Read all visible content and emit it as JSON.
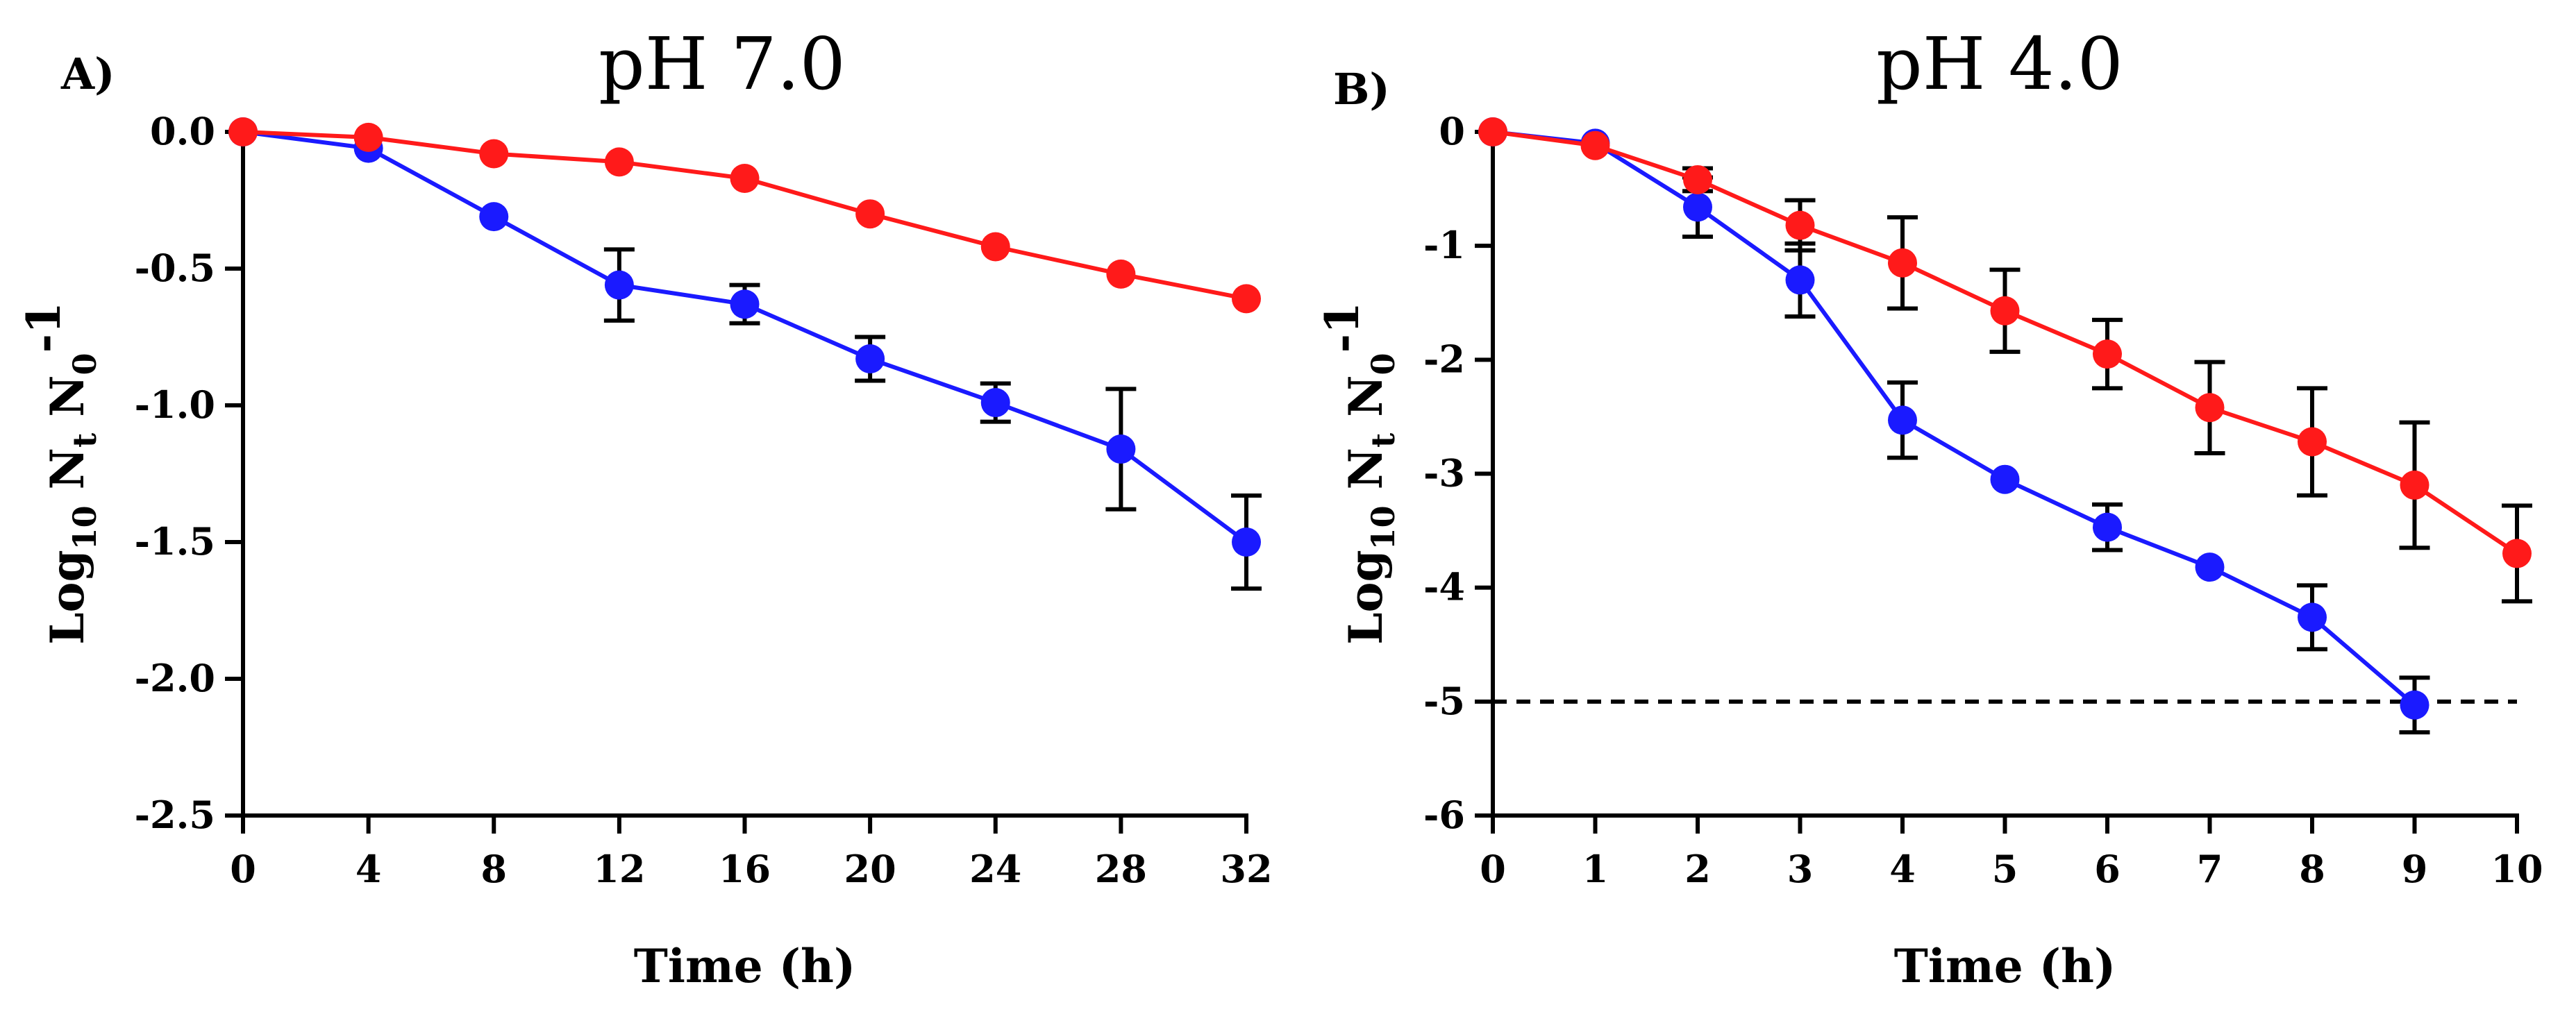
{
  "chart_data": [
    {
      "type": "line",
      "panel_label": "A)",
      "title": "pH 7.0",
      "xlabel": "Time (h)",
      "ylabel": {
        "main": "Log",
        "sub1": "10",
        "n1": " N",
        "sub2": "t",
        "n2": " N",
        "sub3": "0",
        "sup": "-1"
      },
      "x_ticks": [
        0,
        4,
        8,
        12,
        16,
        20,
        24,
        28,
        32
      ],
      "x_tick_labels": [
        "0",
        "4",
        "8",
        "12",
        "16",
        "20",
        "24",
        "28",
        "32"
      ],
      "y_ticks": [
        0.0,
        -0.5,
        -1.0,
        -1.5,
        -2.0,
        -2.5
      ],
      "y_tick_labels": [
        "0.0",
        "-0.5",
        "-1.0",
        "-1.5",
        "-2.0",
        "-2.5"
      ],
      "xlim": [
        0,
        32
      ],
      "ylim": [
        -2.5,
        0.0
      ],
      "grid": false,
      "series": [
        {
          "name": "red",
          "color": "#ff1a1a",
          "x": [
            0,
            4,
            8,
            12,
            16,
            20,
            24,
            28,
            32
          ],
          "y": [
            0.0,
            -0.02,
            -0.08,
            -0.11,
            -0.17,
            -0.3,
            -0.42,
            -0.52,
            -0.61
          ],
          "err": [
            0,
            0,
            0,
            0,
            0,
            0,
            0,
            0,
            0
          ]
        },
        {
          "name": "blue",
          "color": "#1a1aff",
          "x": [
            0,
            4,
            8,
            12,
            16,
            20,
            24,
            28,
            32
          ],
          "y": [
            0.0,
            -0.06,
            -0.31,
            -0.56,
            -0.63,
            -0.83,
            -0.99,
            -1.16,
            -1.5
          ],
          "err": [
            0,
            0,
            0,
            0.13,
            0.07,
            0.08,
            0.07,
            0.22,
            0.17
          ]
        }
      ]
    },
    {
      "type": "line",
      "panel_label": "B)",
      "title": "pH 4.0",
      "xlabel": "Time (h)",
      "ylabel": {
        "main": "Log",
        "sub1": "10",
        "n1": " N",
        "sub2": "t",
        "n2": " N",
        "sub3": "0",
        "sup": "-1"
      },
      "x_ticks": [
        0,
        1,
        2,
        3,
        4,
        5,
        6,
        7,
        8,
        9,
        10
      ],
      "x_tick_labels": [
        "0",
        "1",
        "2",
        "3",
        "4",
        "5",
        "6",
        "7",
        "8",
        "9",
        "10"
      ],
      "y_ticks": [
        0,
        -1,
        -2,
        -3,
        -4,
        -5,
        -6
      ],
      "y_tick_labels": [
        "0",
        "-1",
        "-2",
        "-3",
        "-4",
        "-5",
        "-6"
      ],
      "xlim": [
        0,
        10
      ],
      "ylim": [
        -6,
        0
      ],
      "grid": false,
      "reference_line_y": -5,
      "series": [
        {
          "name": "red",
          "color": "#ff1a1a",
          "x": [
            0,
            1,
            2,
            3,
            4,
            5,
            6,
            7,
            8,
            9,
            10
          ],
          "y": [
            0,
            -0.12,
            -0.42,
            -0.82,
            -1.15,
            -1.57,
            -1.95,
            -2.42,
            -2.72,
            -3.1,
            -3.7
          ],
          "err": [
            0,
            0,
            0.1,
            0.22,
            0.4,
            0.36,
            0.3,
            0.4,
            0.47,
            0.55,
            0.42
          ]
        },
        {
          "name": "blue",
          "color": "#1a1aff",
          "x": [
            0,
            1,
            2,
            3,
            4,
            5,
            6,
            7,
            8,
            9
          ],
          "y": [
            0,
            -0.1,
            -0.66,
            -1.3,
            -2.53,
            -3.05,
            -3.47,
            -3.82,
            -4.26,
            -5.03
          ],
          "err": [
            0,
            0,
            0.26,
            0.32,
            0.33,
            0,
            0.2,
            0,
            0.28,
            0.24
          ]
        }
      ]
    }
  ]
}
